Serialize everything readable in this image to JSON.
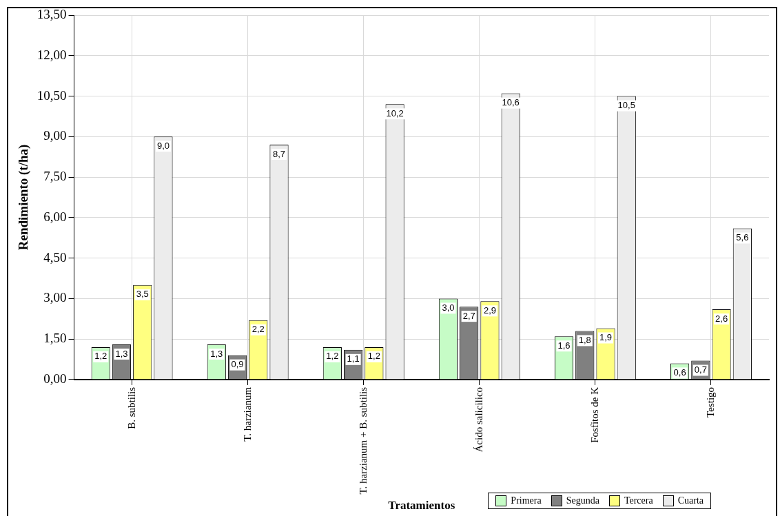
{
  "chart_data": {
    "type": "bar",
    "xlabel": "Tratamientos",
    "ylabel": "Rendimiento (t/ha)",
    "categories": [
      "B. subtilis",
      "T. harzianum",
      "T. harzianum + B. subtilis",
      "Ácido salicilico",
      "Fosfitos de K",
      "Testigo"
    ],
    "series": [
      {
        "name": "Primera",
        "color": "#c6fcc6",
        "values": [
          1.2,
          1.3,
          1.2,
          3.0,
          1.6,
          0.6
        ],
        "value_labels": [
          "1,2",
          "1,3",
          "1,2",
          "3,0",
          "1,6",
          "0,6"
        ]
      },
      {
        "name": "Segunda",
        "color": "#808080",
        "values": [
          1.3,
          0.9,
          1.1,
          2.7,
          1.8,
          0.7
        ],
        "value_labels": [
          "1,3",
          "0,9",
          "1,1",
          "2,7",
          "1,8",
          "0,7"
        ]
      },
      {
        "name": "Tercera",
        "color": "#ffff80",
        "values": [
          3.5,
          2.2,
          1.2,
          2.9,
          1.9,
          2.6
        ],
        "value_labels": [
          "3,5",
          "2,2",
          "1,2",
          "2,9",
          "1,9",
          "2,6"
        ]
      },
      {
        "name": "Cuarta",
        "color": "#ececec",
        "values": [
          9.0,
          8.7,
          10.2,
          10.6,
          10.5,
          5.6
        ],
        "value_labels": [
          "9,0",
          "8,7",
          "10,2",
          "10,6",
          "10,5",
          "5,6"
        ]
      }
    ],
    "ylim": [
      0,
      13.5
    ],
    "yticks": [
      {
        "value": 0,
        "label": "0,00"
      },
      {
        "value": 1.5,
        "label": "1,50"
      },
      {
        "value": 3,
        "label": "3,00"
      },
      {
        "value": 4.5,
        "label": "4,50"
      },
      {
        "value": 6,
        "label": "6,00"
      },
      {
        "value": 7.5,
        "label": "7,50"
      },
      {
        "value": 9,
        "label": "9,00"
      },
      {
        "value": 10.5,
        "label": "10,50"
      },
      {
        "value": 12,
        "label": "12,00"
      },
      {
        "value": 13.5,
        "label": "13,50"
      }
    ],
    "grid": true,
    "legend": "bottom right"
  }
}
